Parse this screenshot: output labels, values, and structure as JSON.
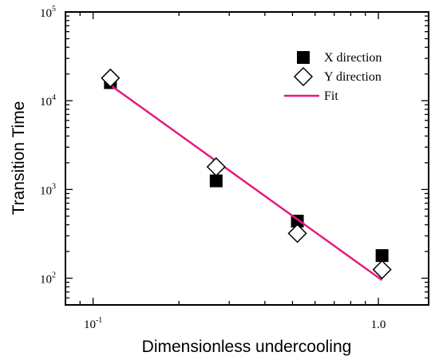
{
  "chart_data": {
    "type": "scatter",
    "xlabel": "Dimensionless undercooling",
    "ylabel": "Transition Time",
    "x_scale": "log",
    "y_scale": "log",
    "xlim": [
      0.08,
      1.5
    ],
    "ylim": [
      50,
      100000
    ],
    "x_ticks": [
      {
        "value": 0.1,
        "base": "10",
        "exp": "-1"
      },
      {
        "value": 1.0,
        "label": "1.0"
      }
    ],
    "y_ticks": [
      {
        "value": 100,
        "base": "10",
        "exp": "2"
      },
      {
        "value": 1000,
        "base": "10",
        "exp": "3"
      },
      {
        "value": 10000,
        "base": "10",
        "exp": "4"
      },
      {
        "value": 100000,
        "base": "10",
        "exp": "5"
      }
    ],
    "grid": false,
    "legend_position": "top-right",
    "series": [
      {
        "name": "X direction",
        "marker": "filled-square",
        "color": "#000000",
        "x": [
          0.115,
          0.27,
          0.52,
          1.03
        ],
        "y": [
          16000,
          1250,
          440,
          180
        ]
      },
      {
        "name": "Y direction",
        "marker": "open-diamond",
        "color": "#000000",
        "x": [
          0.115,
          0.27,
          0.52,
          1.03
        ],
        "y": [
          18000,
          1800,
          320,
          125
        ]
      },
      {
        "name": "Fit",
        "marker": "line",
        "color": "#e8197d",
        "x": [
          0.115,
          1.03
        ],
        "y": [
          15000,
          95
        ]
      }
    ]
  }
}
